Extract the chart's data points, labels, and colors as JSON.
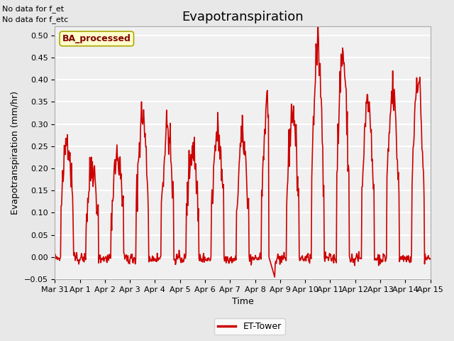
{
  "title": "Evapotranspiration",
  "ylabel": "Evapotranspiration (mm/hr)",
  "xlabel": "Time",
  "ylim": [
    -0.05,
    0.52
  ],
  "yticks": [
    -0.05,
    0.0,
    0.05,
    0.1,
    0.15,
    0.2,
    0.25,
    0.3,
    0.35,
    0.4,
    0.45,
    0.5
  ],
  "line_color": "#cc0000",
  "line_width": 1.2,
  "bg_color": "#e8e8e8",
  "plot_bg_color": "#f0f0f0",
  "grid_color": "white",
  "text_annotations": [
    "No data for f_et",
    "No data for f_etc"
  ],
  "legend_label": "ET-Tower",
  "legend_box_color": "#ffffcc",
  "legend_box_edge": "#cccc00",
  "watermark_text": "BA_processed",
  "watermark_color": "#800000",
  "x_tick_labels": [
    "Mar 31",
    "Apr 1",
    "Apr 2",
    "Apr 3",
    "Apr 4",
    "Apr 5",
    "Apr 6",
    "Apr 7",
    "Apr 8",
    "Apr 9",
    "Apr 10",
    "Apr 11",
    "Apr 12",
    "Apr 13",
    "Apr 14",
    "Apr 15"
  ],
  "n_days": 15,
  "day_peaks": [
    0.27,
    0.21,
    0.23,
    0.32,
    0.29,
    0.25,
    0.28,
    0.27,
    0.35,
    0.33,
    0.47,
    0.46,
    0.35,
    0.37,
    0.41
  ],
  "title_fontsize": 13,
  "axis_fontsize": 9,
  "tick_fontsize": 8
}
